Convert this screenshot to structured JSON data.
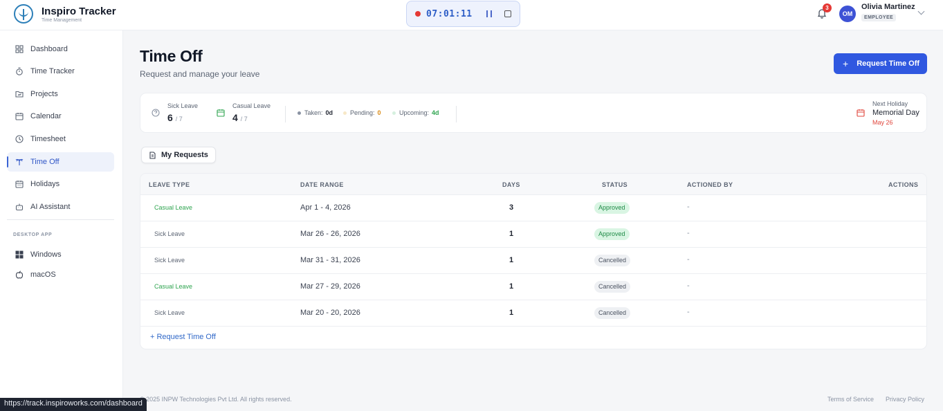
{
  "app": {
    "title": "Inspiro Tracker",
    "subtitle": "Time Management"
  },
  "timer": {
    "time": "07:01:11"
  },
  "header": {
    "notification_count": "3",
    "avatar_initials": "OM",
    "user_name": "Olivia Martinez",
    "user_role": "EMPLOYEE"
  },
  "sidebar": {
    "items": [
      {
        "label": "Dashboard",
        "icon": "dashboard-icon"
      },
      {
        "label": "Time Tracker",
        "icon": "stopwatch-icon"
      },
      {
        "label": "Projects",
        "icon": "folder-icon"
      },
      {
        "label": "Calendar",
        "icon": "calendar-icon"
      },
      {
        "label": "Timesheet",
        "icon": "clock-icon"
      },
      {
        "label": "Time Off",
        "icon": "palm-tree-icon"
      },
      {
        "label": "Holidays",
        "icon": "calendar-icon"
      },
      {
        "label": "AI Assistant",
        "icon": "bot-icon"
      }
    ],
    "active": "Time Off",
    "section_label": "DESKTOP APP",
    "desktop_items": [
      {
        "label": "Windows",
        "icon": "windows-icon"
      },
      {
        "label": "macOS",
        "icon": "apple-icon"
      }
    ]
  },
  "page": {
    "title": "Time Off",
    "subtitle": "Request and manage your leave",
    "request_button": "Request Time Off"
  },
  "stats": {
    "sick": {
      "label": "Sick Leave",
      "value": "6",
      "total": "/ 7"
    },
    "casual": {
      "label": "Casual Leave",
      "value": "4",
      "total": "/ 7"
    },
    "taken": {
      "label": "Taken:",
      "value": "0d"
    },
    "pending": {
      "label": "Pending:",
      "value": "0"
    },
    "upcoming": {
      "label": "Upcoming:",
      "value": "4d"
    },
    "next_holiday": {
      "label": "Next Holiday",
      "name": "Memorial Day",
      "date": "May 26"
    }
  },
  "tabs": {
    "my_requests": "My Requests"
  },
  "table": {
    "headers": {
      "leave_type": "LEAVE TYPE",
      "date_range": "DATE RANGE",
      "days": "DAYS",
      "status": "STATUS",
      "actioned_by": "ACTIONED BY",
      "actions": "ACTIONS"
    },
    "rows": [
      {
        "type": "Casual Leave",
        "range": "Apr 1 - 4, 2026",
        "days": "3",
        "status": "Approved",
        "by": "-"
      },
      {
        "type": "Sick Leave",
        "range": "Mar 26 - 26, 2026",
        "days": "1",
        "status": "Approved",
        "by": "-"
      },
      {
        "type": "Sick Leave",
        "range": "Mar 31 - 31, 2026",
        "days": "1",
        "status": "Cancelled",
        "by": "-"
      },
      {
        "type": "Casual Leave",
        "range": "Mar 27 - 29, 2026",
        "days": "1",
        "status": "Cancelled",
        "by": "-"
      },
      {
        "type": "Sick Leave",
        "range": "Mar 20 - 20, 2026",
        "days": "1",
        "status": "Cancelled",
        "by": "-"
      }
    ],
    "footer_link": "+ Request Time Off"
  },
  "footer": {
    "copyright": "© 2025 INPW Technologies Pvt Ltd. All rights reserved.",
    "terms": "Terms of Service",
    "privacy": "Privacy Policy"
  },
  "status_bar_url": "https://track.inspiroworks.com/dashboard",
  "colors": {
    "accent": "#3058e0",
    "casual": "#2ea44f",
    "approved_bg": "#d9f5e3",
    "recording": "#e53935"
  }
}
